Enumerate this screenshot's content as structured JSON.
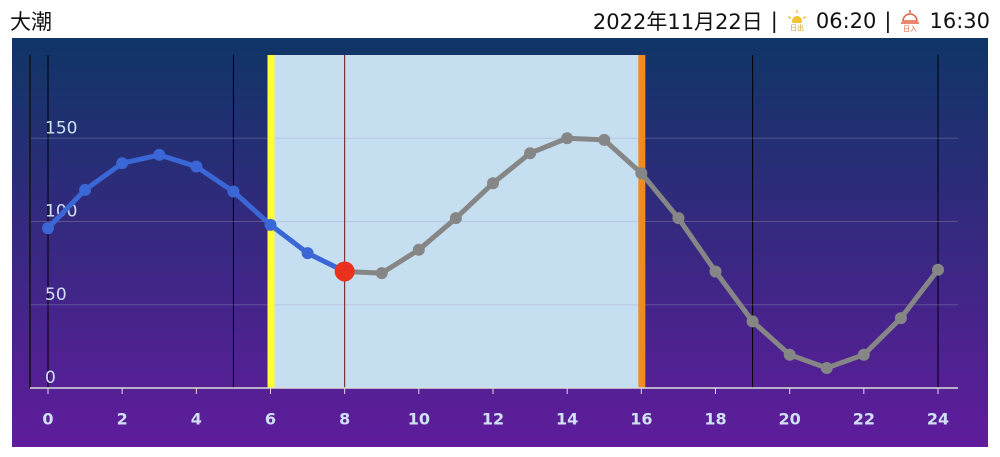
{
  "header": {
    "tide_type": "大潮",
    "date": "2022年11月22日",
    "separator": "|",
    "sunrise": "06:20",
    "sunset": "16:30"
  },
  "chart_data": {
    "type": "line",
    "x": [
      0,
      1,
      2,
      3,
      4,
      5,
      6,
      7,
      8,
      9,
      10,
      11,
      12,
      13,
      14,
      15,
      16,
      17,
      18,
      19,
      20,
      21,
      22,
      23,
      24
    ],
    "series": [
      {
        "values": [
          96,
          119,
          135,
          140,
          133,
          118,
          98,
          81,
          70,
          69,
          83,
          102,
          123,
          141,
          150,
          149,
          129,
          102,
          70,
          40,
          20,
          12,
          20,
          42,
          71
        ],
        "color": "#3a66d6",
        "future_color": "#868686"
      }
    ],
    "now": 8,
    "now_color": "#e8321e",
    "daylight": [
      6,
      16
    ],
    "daylight_color": "#c5def0",
    "sunrise_color": "#ffff33",
    "sunset_color": "#f08a24",
    "markers": [
      0,
      5,
      19,
      24
    ],
    "xlim": [
      0,
      24
    ],
    "xticks": [
      0,
      2,
      4,
      6,
      8,
      10,
      12,
      14,
      16,
      18,
      20,
      22,
      24
    ],
    "ylim": [
      0,
      200
    ],
    "yticks": [
      0,
      50,
      100,
      150
    ],
    "grid": true
  }
}
